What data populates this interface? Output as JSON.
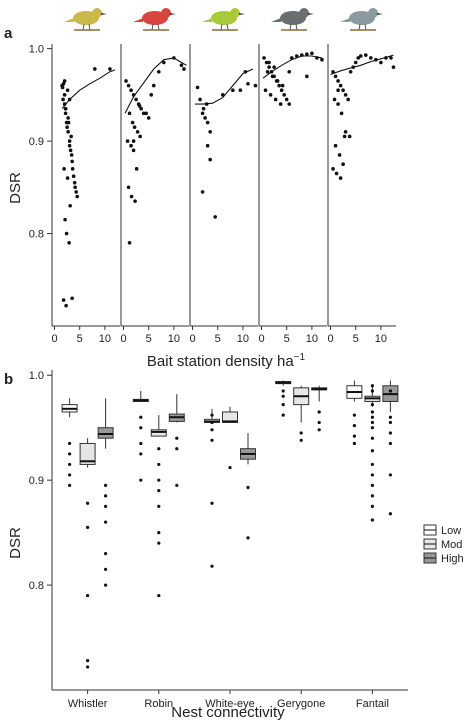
{
  "figure": {
    "panel_a_label": "a",
    "panel_b_label": "b"
  },
  "chart_data": [
    {
      "type": "scatter",
      "panel": "a",
      "ylabel": "DSR",
      "xlabel": "Bait station density ha",
      "xlabel_sup": "−1",
      "ylim": [
        0.7,
        1.005
      ],
      "yticks": [
        0.8,
        0.9,
        1.0
      ],
      "ytick_labels": [
        "0.8",
        "0.9",
        "1.0"
      ],
      "xlim": [
        -0.5,
        13
      ],
      "xticks": [
        0,
        5,
        10
      ],
      "xtick_labels": [
        "0",
        "5",
        "10"
      ],
      "grid": false,
      "facets": [
        {
          "species": "Whistler",
          "icon": "whistler-bird",
          "color": "#c9b84a",
          "x": [
            1.5,
            1.6,
            1.8,
            2.0,
            2.0,
            2.2,
            2.4,
            2.5,
            2.7,
            3.0,
            3.0,
            3.2,
            3.4,
            3.5,
            3.6,
            3.8,
            4.0,
            4.1,
            4.3,
            4.5,
            8.0,
            11.0,
            1.7,
            2.2,
            2.8,
            3.3,
            1.9,
            2.6,
            3.1,
            2.1,
            2.4,
            2.9,
            3.5,
            1.8,
            2.3,
            2.0,
            2.6,
            3.0,
            2.2,
            2.7
          ],
          "y": [
            0.96,
            0.958,
            0.962,
            0.95,
            0.94,
            0.93,
            0.92,
            0.915,
            0.91,
            0.9,
            0.895,
            0.89,
            0.885,
            0.878,
            0.87,
            0.862,
            0.855,
            0.85,
            0.845,
            0.84,
            0.978,
            0.978,
            0.945,
            0.935,
            0.92,
            0.905,
            0.87,
            0.86,
            0.83,
            0.815,
            0.8,
            0.79,
            0.73,
            0.728,
            0.722,
            0.965,
            0.955,
            0.945,
            0.935,
            0.925
          ],
          "fit_x": [
            1.5,
            3,
            5,
            7,
            9,
            11,
            12
          ],
          "fit_y": [
            0.935,
            0.945,
            0.955,
            0.962,
            0.968,
            0.975,
            0.977
          ]
        },
        {
          "species": "Robin",
          "icon": "robin-bird",
          "color": "#d8453f",
          "x": [
            0.5,
            1.0,
            1.5,
            2.0,
            2.5,
            3.0,
            3.2,
            3.5,
            4.0,
            4.5,
            5.0,
            5.5,
            6.0,
            7.0,
            8.0,
            10.0,
            11.5,
            12.0,
            1.2,
            1.8,
            2.2,
            2.8,
            3.3,
            0.8,
            1.5,
            2.0,
            2.6,
            1.0,
            1.6,
            2.3,
            1.2,
            2.0
          ],
          "y": [
            0.965,
            0.96,
            0.955,
            0.95,
            0.945,
            0.94,
            0.938,
            0.935,
            0.93,
            0.93,
            0.925,
            0.95,
            0.96,
            0.975,
            0.985,
            0.99,
            0.982,
            0.978,
            0.93,
            0.92,
            0.915,
            0.91,
            0.905,
            0.9,
            0.895,
            0.89,
            0.87,
            0.85,
            0.84,
            0.835,
            0.79,
            0.9
          ],
          "fit_x": [
            0.3,
            2,
            4,
            6,
            8,
            10,
            11.5,
            12.5
          ],
          "fit_y": [
            0.93,
            0.948,
            0.963,
            0.978,
            0.988,
            0.99,
            0.985,
            0.982
          ],
          "dense_cluster_note": ""
        },
        {
          "species": "White-eye",
          "icon": "white-eye-bird",
          "color": "#a8c93a",
          "x": [
            1.0,
            1.5,
            2.0,
            2.5,
            3.0,
            3.5,
            3.0,
            3.5,
            2.0,
            4.5,
            6.0,
            8.0,
            9.5,
            11.0,
            10.5,
            12.5,
            2.2,
            2.8
          ],
          "y": [
            0.958,
            0.945,
            0.93,
            0.925,
            0.92,
            0.91,
            0.895,
            0.88,
            0.845,
            0.818,
            0.95,
            0.955,
            0.955,
            0.962,
            0.975,
            0.96,
            0.935,
            0.94
          ],
          "fit_x": [
            0.5,
            2,
            4,
            6,
            8,
            10,
            12
          ],
          "fit_y": [
            0.94,
            0.94,
            0.941,
            0.947,
            0.96,
            0.973,
            0.978
          ]
        },
        {
          "species": "Gerygone",
          "icon": "gerygone-bird",
          "color": "#6b6e70",
          "x": [
            0.5,
            1.0,
            1.5,
            2.0,
            2.5,
            3.0,
            3.5,
            4.0,
            4.5,
            5.0,
            5.5,
            6.0,
            7.0,
            8.0,
            9.0,
            10.0,
            11.0,
            12.0,
            1.2,
            2.2,
            3.2,
            4.2,
            0.8,
            1.8,
            2.8,
            3.8,
            1.5,
            2.5,
            5.5,
            9.0
          ],
          "y": [
            0.99,
            0.985,
            0.98,
            0.975,
            0.97,
            0.965,
            0.96,
            0.955,
            0.95,
            0.945,
            0.94,
            0.99,
            0.992,
            0.993,
            0.994,
            0.995,
            0.99,
            0.988,
            0.975,
            0.97,
            0.965,
            0.96,
            0.955,
            0.95,
            0.945,
            0.94,
            0.985,
            0.98,
            0.975,
            0.97
          ],
          "fit_x": [
            0.3,
            2,
            4,
            6,
            8,
            10,
            12
          ],
          "fit_y": [
            0.968,
            0.975,
            0.982,
            0.988,
            0.992,
            0.992,
            0.99
          ]
        },
        {
          "species": "Fantail",
          "icon": "fantail-bird",
          "color": "#8a9aa0",
          "x": [
            0.5,
            1.0,
            1.5,
            2.0,
            2.5,
            3.0,
            3.5,
            4.0,
            4.5,
            5.0,
            5.5,
            6.0,
            7.0,
            8.0,
            9.0,
            10.0,
            11.0,
            12.0,
            12.5,
            0.8,
            1.5,
            2.2,
            3.0,
            3.8,
            1.0,
            1.8,
            2.5,
            0.5,
            1.2,
            2.0,
            2.8,
            1.5
          ],
          "y": [
            0.975,
            0.97,
            0.965,
            0.96,
            0.955,
            0.95,
            0.945,
            0.975,
            0.98,
            0.985,
            0.99,
            0.992,
            0.993,
            0.99,
            0.988,
            0.985,
            0.99,
            0.99,
            0.98,
            0.945,
            0.94,
            0.93,
            0.91,
            0.905,
            0.895,
            0.885,
            0.875,
            0.87,
            0.865,
            0.86,
            0.905,
            0.955
          ],
          "fit_x": [
            0,
            2,
            4,
            6,
            8,
            10,
            12.5
          ],
          "fit_y": [
            0.972,
            0.976,
            0.979,
            0.982,
            0.986,
            0.989,
            0.993
          ]
        }
      ]
    },
    {
      "type": "box",
      "panel": "b",
      "ylabel": "DSR",
      "xlabel": "Nest connectivity",
      "ylim": [
        0.7,
        1.005
      ],
      "yticks": [
        0.8,
        0.9,
        1.0
      ],
      "ytick_labels": [
        "0.8",
        "0.9",
        "1.0"
      ],
      "categories": [
        "Whistler",
        "Robin",
        "White-eye",
        "Gerygone",
        "Fantail"
      ],
      "grid": false,
      "legend": {
        "placement": "right",
        "entries": [
          {
            "label": "Low",
            "fill": "#ffffff"
          },
          {
            "label": "Mod",
            "fill": "#e6e6e6"
          },
          {
            "label": "High",
            "fill": "#999999"
          }
        ]
      },
      "series": [
        {
          "name": "Low",
          "fill": "#ffffff",
          "boxes": [
            {
              "min": 0.96,
              "q1": 0.965,
              "median": 0.968,
              "q3": 0.972,
              "max": 0.978,
              "outliers": [
                0.935,
                0.925,
                0.915,
                0.905,
                0.895
              ]
            },
            {
              "min": 0.975,
              "q1": 0.975,
              "median": 0.976,
              "q3": 0.977,
              "max": 0.985,
              "outliers": [
                0.96,
                0.95,
                0.935,
                0.925,
                0.9
              ]
            },
            {
              "min": 0.955,
              "q1": 0.955,
              "median": 0.956,
              "q3": 0.958,
              "max": 0.968,
              "outliers": [
                0.962,
                0.955,
                0.948,
                0.938,
                0.878,
                0.818
              ]
            },
            {
              "min": 0.99,
              "q1": 0.992,
              "median": 0.993,
              "q3": 0.994,
              "max": 0.995,
              "outliers": [
                0.985,
                0.98,
                0.972,
                0.962
              ]
            },
            {
              "min": 0.975,
              "q1": 0.978,
              "median": 0.984,
              "q3": 0.99,
              "max": 0.995,
              "outliers": [
                0.962,
                0.952,
                0.942,
                0.935
              ]
            }
          ]
        },
        {
          "name": "Mod",
          "fill": "#e6e6e6",
          "boxes": [
            {
              "min": 0.912,
              "q1": 0.915,
              "median": 0.918,
              "q3": 0.935,
              "max": 0.94,
              "outliers": [
                0.878,
                0.855,
                0.79,
                0.728,
                0.722
              ]
            },
            {
              "min": 0.942,
              "q1": 0.942,
              "median": 0.946,
              "q3": 0.948,
              "max": 0.962,
              "outliers": [
                0.93,
                0.915,
                0.9,
                0.89,
                0.875,
                0.85,
                0.84,
                0.79
              ]
            },
            {
              "min": 0.955,
              "q1": 0.955,
              "median": 0.956,
              "q3": 0.965,
              "max": 0.97,
              "outliers": [
                0.912
              ]
            },
            {
              "min": 0.955,
              "q1": 0.972,
              "median": 0.98,
              "q3": 0.988,
              "max": 0.99,
              "outliers": [
                0.945,
                0.938
              ]
            },
            {
              "min": 0.97,
              "q1": 0.975,
              "median": 0.978,
              "q3": 0.98,
              "max": 0.99,
              "outliers": [
                0.99,
                0.985,
                0.972,
                0.965,
                0.96,
                0.955,
                0.95,
                0.94,
                0.928,
                0.915,
                0.905,
                0.895,
                0.885,
                0.875,
                0.862
              ]
            }
          ]
        },
        {
          "name": "High",
          "fill": "#999999",
          "boxes": [
            {
              "min": 0.93,
              "q1": 0.94,
              "median": 0.944,
              "q3": 0.95,
              "max": 0.978,
              "outliers": [
                0.895,
                0.885,
                0.875,
                0.86,
                0.83,
                0.815,
                0.8
              ]
            },
            {
              "min": 0.955,
              "q1": 0.956,
              "median": 0.96,
              "q3": 0.963,
              "max": 0.982,
              "outliers": [
                0.94,
                0.93,
                0.895
              ]
            },
            {
              "min": 0.915,
              "q1": 0.92,
              "median": 0.925,
              "q3": 0.93,
              "max": 0.945,
              "outliers": [
                0.893,
                0.845
              ]
            },
            {
              "min": 0.975,
              "q1": 0.986,
              "median": 0.987,
              "q3": 0.988,
              "max": 0.99,
              "outliers": [
                0.965,
                0.955,
                0.948
              ]
            },
            {
              "min": 0.965,
              "q1": 0.975,
              "median": 0.982,
              "q3": 0.99,
              "max": 0.995,
              "outliers": [
                0.985,
                0.96,
                0.955,
                0.945,
                0.935,
                0.905,
                0.868
              ]
            }
          ]
        }
      ]
    }
  ]
}
